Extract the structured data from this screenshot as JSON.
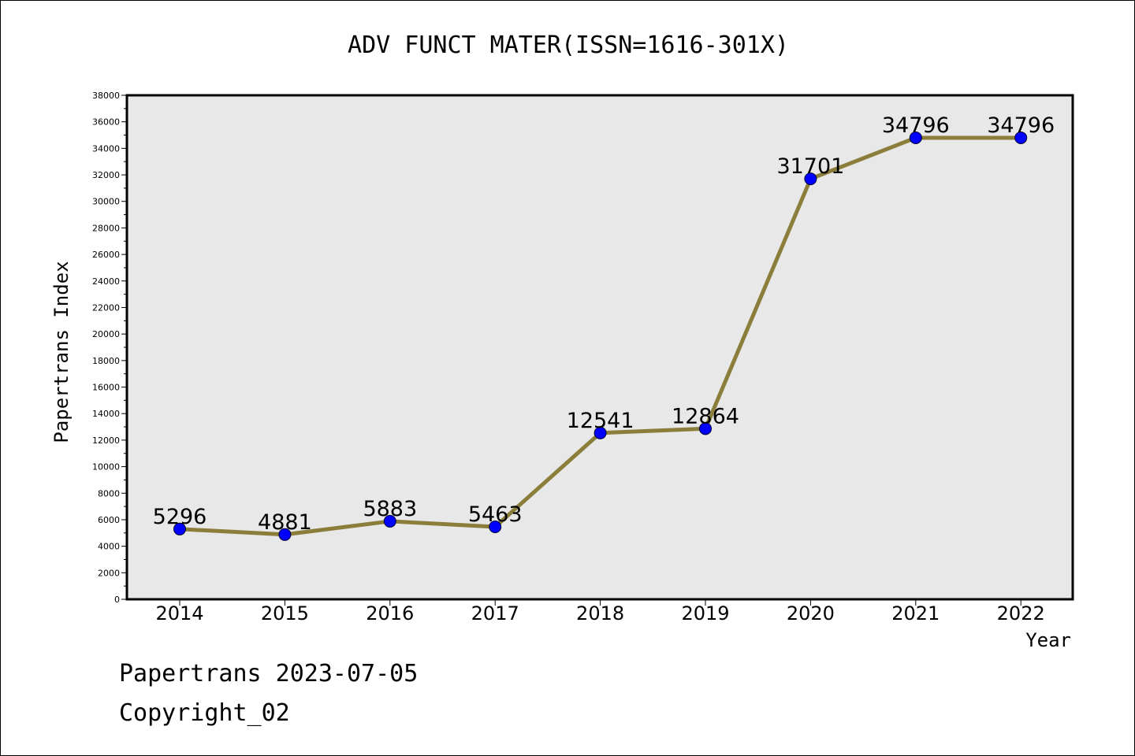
{
  "chart_data": {
    "type": "line",
    "title": "ADV FUNCT MATER(ISSN=1616-301X)",
    "xlabel": "Year",
    "ylabel": "Papertrans Index",
    "categories": [
      "2014",
      "2015",
      "2016",
      "2017",
      "2018",
      "2019",
      "2020",
      "2021",
      "2022"
    ],
    "series": [
      {
        "values": [
          5296,
          4881,
          5883,
          5463,
          12541,
          12864,
          31701,
          34796,
          34796
        ]
      }
    ],
    "data_labels": [
      "5296",
      "4881",
      "5883",
      "5463",
      "12541",
      "12864",
      "31701",
      "34796",
      "34796"
    ],
    "ylim": [
      0,
      38000
    ],
    "yticks": [
      0,
      2000,
      4000,
      6000,
      8000,
      10000,
      12000,
      14000,
      16000,
      18000,
      20000,
      22000,
      24000,
      26000,
      28000,
      30000,
      32000,
      34000,
      36000,
      38000
    ],
    "grid": false,
    "colors": {
      "line": "#8b7d3a",
      "marker": "#0000ff",
      "plot_background": "#e8e8e8"
    }
  },
  "footer": {
    "line1": "Papertrans 2023-07-05",
    "line2": "Copyright_02"
  }
}
